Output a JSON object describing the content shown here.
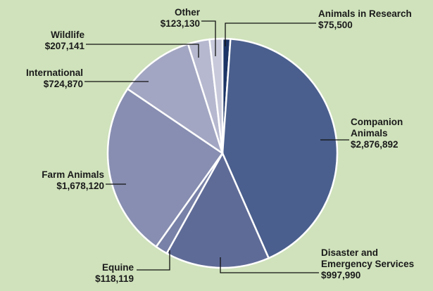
{
  "chart_data": {
    "type": "pie",
    "categories": [
      "Animals in Research",
      "Companion Animals",
      "Disaster and Emergency Services",
      "Equine",
      "Farm Animals",
      "International",
      "Wildlife",
      "Other"
    ],
    "values": [
      75500,
      2876892,
      997990,
      118119,
      1678120,
      724870,
      207141,
      123130
    ],
    "value_labels": [
      "$75,500",
      "$2,876,892",
      "$997,990",
      "$118,119",
      "$1,678,120",
      "$724,870",
      "$207,141",
      "$123,130"
    ],
    "colors": [
      "#1d3566",
      "#4a5f8d",
      "#5f6b97",
      "#7881a7",
      "#878eb1",
      "#a2a6c2",
      "#b6b8cf",
      "#c8c9da"
    ]
  }
}
